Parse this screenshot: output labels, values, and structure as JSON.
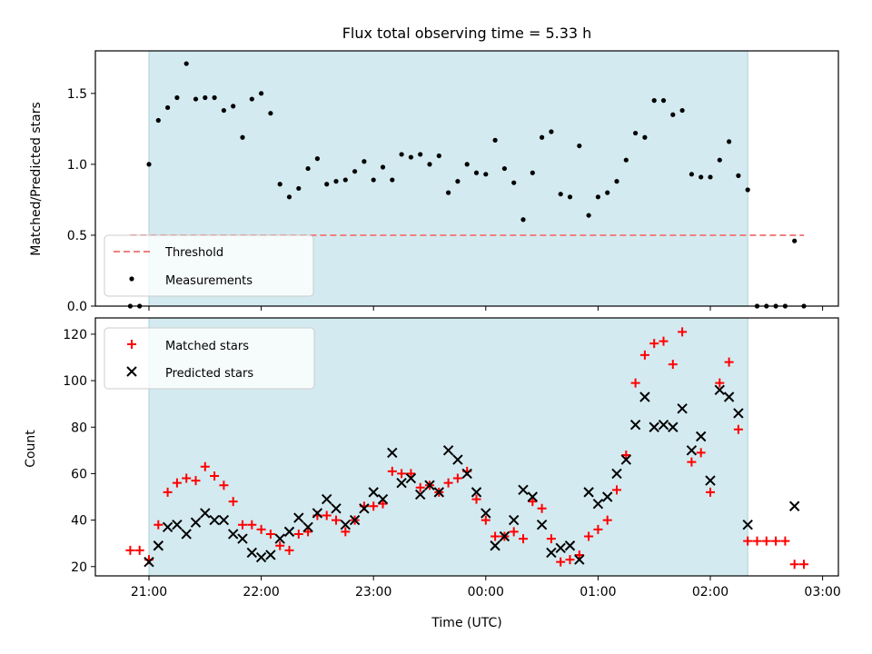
{
  "chart_data": [
    {
      "type": "scatter",
      "title": "Flux total observing time = 5.33 h",
      "ylabel": "Matched/Predicted stars",
      "xlabel": "",
      "ylim": [
        0,
        1.8
      ],
      "yticks": [
        "0.0",
        "0.5",
        "1.0",
        "1.5"
      ],
      "shaded_range": [
        "21:00",
        "02:20"
      ],
      "shade_color": "#d3eaf0",
      "threshold": {
        "label": "Threshold",
        "value": 0.5,
        "color": "#f08080",
        "x_range": [
          "20:50",
          "02:50"
        ]
      },
      "legend": [
        "Threshold",
        "Measurements"
      ],
      "legend_position": "lower-left",
      "series": [
        {
          "name": "Measurements",
          "color": "#000000",
          "x": [
            "20:50",
            "20:55",
            "21:00",
            "21:05",
            "21:10",
            "21:15",
            "21:20",
            "21:25",
            "21:30",
            "21:35",
            "21:40",
            "21:45",
            "21:50",
            "21:55",
            "22:00",
            "22:05",
            "22:10",
            "22:15",
            "22:20",
            "22:25",
            "22:30",
            "22:35",
            "22:40",
            "22:45",
            "22:50",
            "22:55",
            "23:00",
            "23:05",
            "23:10",
            "23:15",
            "23:20",
            "23:25",
            "23:30",
            "23:35",
            "23:40",
            "23:45",
            "23:50",
            "23:55",
            "00:00",
            "00:05",
            "00:10",
            "00:15",
            "00:20",
            "00:25",
            "00:30",
            "00:35",
            "00:40",
            "00:45",
            "00:50",
            "00:55",
            "01:00",
            "01:05",
            "01:10",
            "01:15",
            "01:20",
            "01:25",
            "01:30",
            "01:35",
            "01:40",
            "01:45",
            "01:50",
            "01:55",
            "02:00",
            "02:05",
            "02:10",
            "02:15",
            "02:20",
            "02:25",
            "02:30",
            "02:35",
            "02:40",
            "02:45",
            "02:50"
          ],
          "y": [
            0.0,
            0.0,
            1.0,
            1.31,
            1.4,
            1.47,
            1.71,
            1.46,
            1.47,
            1.47,
            1.38,
            1.41,
            1.19,
            1.46,
            1.5,
            1.36,
            0.86,
            0.77,
            0.83,
            0.97,
            1.04,
            0.86,
            0.88,
            0.89,
            0.95,
            1.02,
            0.89,
            0.98,
            0.89,
            1.07,
            1.05,
            1.07,
            1.0,
            1.06,
            0.8,
            0.88,
            1.0,
            0.94,
            0.93,
            1.17,
            0.97,
            0.87,
            0.61,
            0.94,
            1.19,
            1.23,
            0.79,
            0.77,
            1.13,
            0.64,
            0.77,
            0.8,
            0.88,
            1.03,
            1.22,
            1.19,
            1.45,
            1.45,
            1.35,
            1.38,
            0.93,
            0.91,
            0.91,
            1.03,
            1.16,
            0.92,
            0.82,
            0.0,
            0.0,
            0.0,
            0.0,
            0.46,
            0.0
          ]
        }
      ]
    },
    {
      "type": "scatter",
      "title": "",
      "ylabel": "Count",
      "xlabel": "Time (UTC)",
      "ylim": [
        16,
        127
      ],
      "yticks": [
        "20",
        "40",
        "60",
        "80",
        "100",
        "120"
      ],
      "xticks": [
        "21:00",
        "22:00",
        "23:00",
        "00:00",
        "01:00",
        "02:00",
        "03:00"
      ],
      "shaded_range": [
        "21:00",
        "02:20"
      ],
      "shade_color": "#d3eaf0",
      "legend": [
        "Matched stars",
        "Predicted stars"
      ],
      "legend_position": "upper-left",
      "series": [
        {
          "name": "Matched stars",
          "color": "#ff0000",
          "marker": "+",
          "x": [
            "20:50",
            "20:55",
            "21:00",
            "21:05",
            "21:10",
            "21:15",
            "21:20",
            "21:25",
            "21:30",
            "21:35",
            "21:40",
            "21:45",
            "21:50",
            "21:55",
            "22:00",
            "22:05",
            "22:10",
            "22:15",
            "22:20",
            "22:25",
            "22:30",
            "22:35",
            "22:40",
            "22:45",
            "22:50",
            "22:55",
            "23:00",
            "23:05",
            "23:10",
            "23:15",
            "23:20",
            "23:25",
            "23:30",
            "23:35",
            "23:40",
            "23:45",
            "23:50",
            "23:55",
            "00:00",
            "00:05",
            "00:10",
            "00:15",
            "00:20",
            "00:25",
            "00:30",
            "00:35",
            "00:40",
            "00:45",
            "00:50",
            "00:55",
            "01:00",
            "01:05",
            "01:10",
            "01:15",
            "01:20",
            "01:25",
            "01:30",
            "01:35",
            "01:40",
            "01:45",
            "01:50",
            "01:55",
            "02:00",
            "02:05",
            "02:10",
            "02:15",
            "02:20",
            "02:25",
            "02:30",
            "02:35",
            "02:40",
            "02:45",
            "02:50"
          ],
          "y": [
            27,
            27,
            23,
            38,
            52,
            56,
            58,
            57,
            63,
            59,
            55,
            48,
            38,
            38,
            36,
            34,
            29,
            27,
            34,
            35,
            42,
            42,
            40,
            35,
            40,
            46,
            46,
            47,
            61,
            60,
            60,
            54,
            55,
            52,
            56,
            58,
            61,
            49,
            40,
            33,
            33,
            35,
            32,
            48,
            45,
            32,
            22,
            23,
            25,
            33,
            36,
            40,
            53,
            68,
            99,
            111,
            116,
            117,
            107,
            121,
            65,
            69,
            52,
            99,
            108,
            79,
            31,
            31,
            31,
            31,
            31,
            21,
            21
          ]
        },
        {
          "name": "Predicted stars",
          "color": "#000000",
          "marker": "x",
          "x": [
            "21:00",
            "21:05",
            "21:10",
            "21:15",
            "21:20",
            "21:25",
            "21:30",
            "21:35",
            "21:40",
            "21:45",
            "21:50",
            "21:55",
            "22:00",
            "22:05",
            "22:10",
            "22:15",
            "22:20",
            "22:25",
            "22:30",
            "22:35",
            "22:40",
            "22:45",
            "22:50",
            "22:55",
            "23:00",
            "23:05",
            "23:10",
            "23:15",
            "23:20",
            "23:25",
            "23:30",
            "23:35",
            "23:40",
            "23:45",
            "23:50",
            "23:55",
            "00:00",
            "00:05",
            "00:10",
            "00:15",
            "00:20",
            "00:25",
            "00:30",
            "00:35",
            "00:40",
            "00:45",
            "00:50",
            "00:55",
            "01:00",
            "01:05",
            "01:10",
            "01:15",
            "01:20",
            "01:25",
            "01:30",
            "01:35",
            "01:40",
            "01:45",
            "01:50",
            "01:55",
            "02:00",
            "02:05",
            "02:10",
            "02:15",
            "02:20",
            "02:45"
          ],
          "y": [
            22,
            29,
            37,
            38,
            34,
            39,
            43,
            40,
            40,
            34,
            32,
            26,
            24,
            25,
            32,
            35,
            41,
            37,
            43,
            49,
            45,
            38,
            40,
            45,
            52,
            49,
            69,
            56,
            58,
            51,
            55,
            52,
            70,
            66,
            60,
            52,
            43,
            29,
            33,
            40,
            53,
            50,
            38,
            26,
            28,
            29,
            23,
            52,
            47,
            50,
            60,
            66,
            81,
            93,
            80,
            81,
            80,
            88,
            70,
            76,
            57,
            96,
            93,
            86,
            38,
            46
          ]
        }
      ]
    }
  ]
}
